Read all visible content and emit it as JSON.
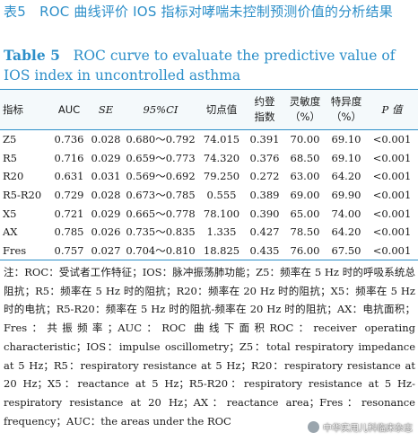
{
  "title_cn": "表5　ROC 曲线评价 IOS 指标对哮喘未控制预测价值的分析结果",
  "title_en_label": "Table 5",
  "title_en_text": "ROC curve to evaluate the predictive value of IOS index in uncontrolled asthma",
  "table": {
    "headers": [
      "指标",
      "AUC",
      "SE",
      "95%CI",
      "切点值",
      "约登\n指数",
      "灵敏度\n（%）",
      "特异度\n（%）",
      "P 值"
    ],
    "rows": [
      [
        "Z5",
        "0.736",
        "0.028",
        "0.680～0.792",
        "74.015",
        "0.391",
        "70.00",
        "69.10",
        "<0.001"
      ],
      [
        "R5",
        "0.716",
        "0.029",
        "0.659～0.773",
        "74.320",
        "0.376",
        "68.50",
        "69.10",
        "<0.001"
      ],
      [
        "R20",
        "0.631",
        "0.031",
        "0.569～0.692",
        "79.250",
        "0.272",
        "63.00",
        "64.20",
        "<0.001"
      ],
      [
        "R5-R20",
        "0.729",
        "0.028",
        "0.673～0.785",
        "0.555",
        "0.389",
        "69.00",
        "69.90",
        "<0.001"
      ],
      [
        "X5",
        "0.721",
        "0.029",
        "0.665～0.778",
        "78.100",
        "0.390",
        "65.00",
        "74.00",
        "<0.001"
      ],
      [
        "AX",
        "0.785",
        "0.026",
        "0.735～0.835",
        "1.335",
        "0.427",
        "78.50",
        "64.20",
        "<0.001"
      ],
      [
        "Fres",
        "0.757",
        "0.027",
        "0.704～0.810",
        "18.825",
        "0.435",
        "76.00",
        "67.50",
        "<0.001"
      ]
    ]
  },
  "note_cn": "注：ROC：受试者工作特征；IOS：脉冲振荡肺功能；Z5：频率在 5 Hz 时的呼吸系统总阻抗；R5：频率在 5 Hz 时的阻抗；R20：频率在 20 Hz 时的阻抗；X5：频率在 5 Hz 时的电抗；R5-R20：频率在 5 Hz 时的阻抗-频率在 20 Hz 时的阻抗；AX：电抗面积；Fres：共振频率；AUC：ROC 曲线下面积",
  "note_en": "ROC：receiver operating characteristic；IOS：impulse oscillometry；Z5：total respiratory impedance at 5 Hz；R5：respiratory resistance at 5 Hz；R20：respiratory resistance at 20 Hz；X5：reactance at 5 Hz；R5-R20：respiratory resistance at 5 Hz-respiratory resistance at 20 Hz；AX：reactance area；Fres：resonance frequency；AUC：the areas under the ROC",
  "watermark": "中华实用儿科临床杂志"
}
